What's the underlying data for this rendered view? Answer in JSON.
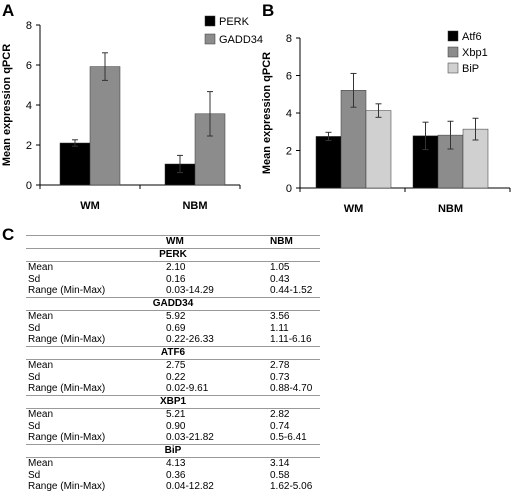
{
  "panels": {
    "a": "A",
    "b": "B",
    "c": "C"
  },
  "chart_data": [
    {
      "type": "bar",
      "panel": "A",
      "title": "",
      "ylabel": "Mean expression qPCR",
      "xlabel": "",
      "ylim": [
        0,
        8
      ],
      "yticks": [
        0,
        2,
        4,
        6,
        8
      ],
      "categories": [
        "WM",
        "NBM"
      ],
      "series": [
        {
          "name": "PERK",
          "values": [
            2.1,
            1.05
          ],
          "errors": [
            0.16,
            0.43
          ],
          "color": "#000000"
        },
        {
          "name": "GADD34",
          "values": [
            5.92,
            3.56
          ],
          "errors": [
            0.69,
            1.11
          ],
          "color": "#8c8c8c"
        }
      ],
      "legend": "top-right",
      "grid": false
    },
    {
      "type": "bar",
      "panel": "B",
      "title": "",
      "ylabel": "Mean expression qPCR",
      "xlabel": "",
      "ylim": [
        0,
        8
      ],
      "yticks": [
        0,
        2,
        4,
        6,
        8
      ],
      "categories": [
        "WM",
        "NBM"
      ],
      "series": [
        {
          "name": "Atf6",
          "values": [
            2.75,
            2.78
          ],
          "errors": [
            0.22,
            0.73
          ],
          "color": "#000000"
        },
        {
          "name": "Xbp1",
          "values": [
            5.21,
            2.82
          ],
          "errors": [
            0.9,
            0.74
          ],
          "color": "#8c8c8c"
        },
        {
          "name": "BiP",
          "values": [
            4.13,
            3.14
          ],
          "errors": [
            0.36,
            0.58
          ],
          "color": "#d0d0d0"
        }
      ],
      "legend": "top-right",
      "grid": false
    }
  ],
  "table": {
    "columns": [
      "",
      "WM",
      "NBM"
    ],
    "sections": [
      {
        "name": "PERK",
        "rows": [
          [
            "Mean",
            "2.10",
            "1.05"
          ],
          [
            "Sd",
            "0.16",
            "0.43"
          ],
          [
            "Range (Min-Max)",
            "0.03-14.29",
            "0.44-1.52"
          ]
        ]
      },
      {
        "name": "GADD34",
        "rows": [
          [
            "Mean",
            "5.92",
            "3.56"
          ],
          [
            "Sd",
            "0.69",
            "1.11"
          ],
          [
            "Range (Min-Max)",
            "0.22-26.33",
            "1.11-6.16"
          ]
        ]
      },
      {
        "name": "ATF6",
        "rows": [
          [
            "Mean",
            "2.75",
            "2.78"
          ],
          [
            "Sd",
            "0.22",
            "0.73"
          ],
          [
            "Range (Min-Max)",
            "0.02-9.61",
            "0.88-4.70"
          ]
        ]
      },
      {
        "name": "XBP1",
        "rows": [
          [
            "Mean",
            "5.21",
            "2.82"
          ],
          [
            "Sd",
            "0.90",
            "0.74"
          ],
          [
            "Range (Min-Max)",
            "0.03-21.82",
            "0.5-6.41"
          ]
        ]
      },
      {
        "name": "BiP",
        "rows": [
          [
            "Mean",
            "4.13",
            "3.14"
          ],
          [
            "Sd",
            "0.36",
            "0.58"
          ],
          [
            "Range (Min-Max)",
            "0.04-12.82",
            "1.62-5.06"
          ]
        ]
      }
    ]
  }
}
